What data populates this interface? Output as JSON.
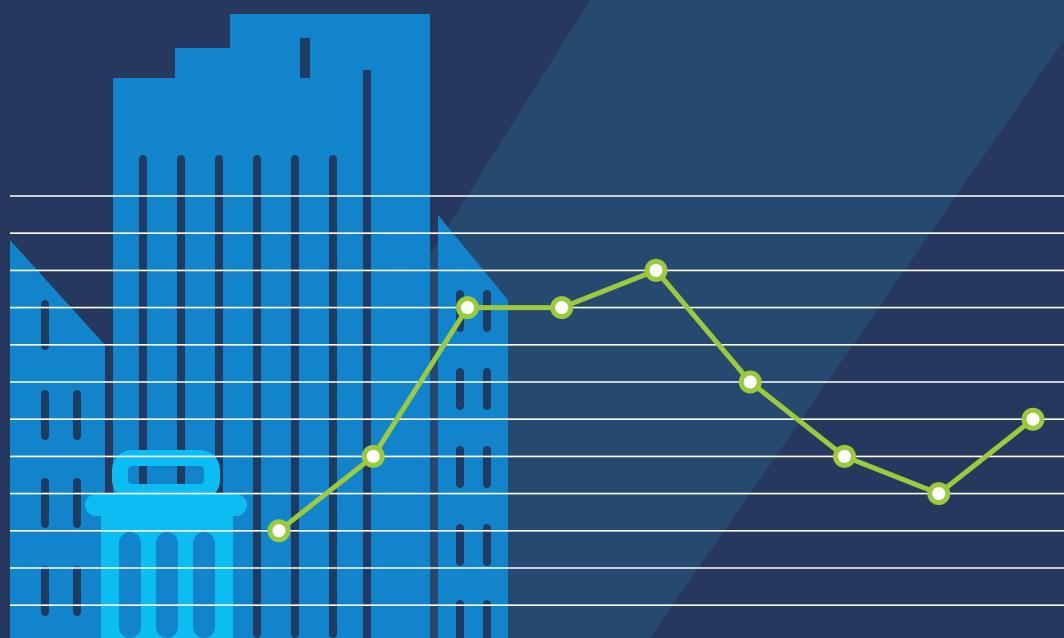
{
  "colors": {
    "background": "#27385e",
    "diagonal_band": "#25496f",
    "building_blue": "#1184cb",
    "building_dark_stripe": "#1e3c62",
    "trash_cyan": "#0bbdf2",
    "grid_line": "#ffffff",
    "series_line": "#9bca3c",
    "marker_fill": "#ffffff"
  },
  "icons": [
    "office-building-icon",
    "trash-can-icon"
  ],
  "chart_data": {
    "type": "line",
    "title": "",
    "xlabel": "",
    "ylabel": "",
    "grid": true,
    "legend": "none",
    "ylim": [
      0,
      12
    ],
    "grid_lines": 12,
    "x": [
      1,
      2,
      3,
      4,
      5,
      6,
      7,
      8,
      9
    ],
    "series": [
      {
        "values": [
          3,
          5,
          9,
          9,
          10,
          7,
          5,
          4,
          6
        ]
      }
    ]
  }
}
